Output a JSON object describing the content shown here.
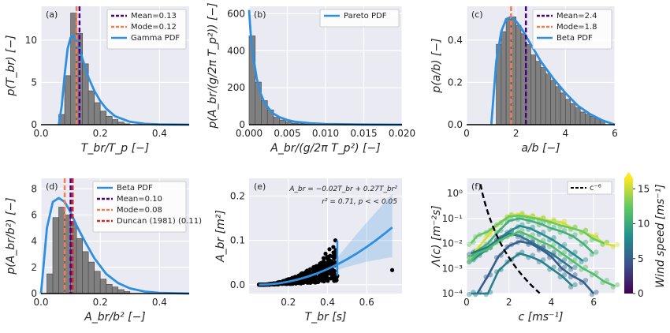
{
  "chart_data": [
    {
      "id": "a",
      "type": "bar",
      "panel_label": "(a)",
      "xlabel": "T_br/T_p [−]",
      "ylabel": "p(T_br) [−]",
      "xlim": [
        0,
        0.5
      ],
      "ylim": [
        0,
        14
      ],
      "xticks": [
        "0.0",
        "0.2",
        "0.4"
      ],
      "yticks": [
        "0",
        "5",
        "10"
      ],
      "xtick_vals": [
        0,
        0.2,
        0.4
      ],
      "ytick_vals": [
        0,
        5,
        10
      ],
      "bin_edges": [
        0.06,
        0.08,
        0.1,
        0.12,
        0.14,
        0.16,
        0.18,
        0.2,
        0.22,
        0.24,
        0.26,
        0.28,
        0.3
      ],
      "hist": [
        1.2,
        5.8,
        13.2,
        10.8,
        7.2,
        4.0,
        2.6,
        1.6,
        1.0,
        0.6,
        0.3,
        0.1
      ],
      "pdf_name": "Gamma PDF",
      "pdf_x": [
        0.06,
        0.07,
        0.08,
        0.09,
        0.1,
        0.11,
        0.12,
        0.13,
        0.14,
        0.16,
        0.18,
        0.2,
        0.22,
        0.25,
        0.3,
        0.35,
        0.4,
        0.5
      ],
      "pdf_y": [
        0,
        2.2,
        6.0,
        9.0,
        10.3,
        10.5,
        10.0,
        9.0,
        7.8,
        5.6,
        4.0,
        2.8,
        1.9,
        1.0,
        0.35,
        0.1,
        0.03,
        0
      ],
      "vlines": [
        {
          "name": "Mean=0.13",
          "x": 0.13,
          "color": "#4b0082",
          "style": "dash"
        },
        {
          "name": "Mode=0.12",
          "x": 0.12,
          "color": "#f47c4e",
          "style": "dash"
        }
      ],
      "legend": [
        "Mean=0.13",
        "Mode=0.12",
        "Gamma PDF"
      ]
    },
    {
      "id": "b",
      "type": "bar",
      "panel_label": "(b)",
      "xlabel": "A_br/(g/2π T_p²) [−]",
      "ylabel": "p(A_br/(g/2π T_p²)) [−]",
      "xlim": [
        0,
        0.02
      ],
      "ylim": [
        0,
        640
      ],
      "xticks": [
        "0.000",
        "0.005",
        "0.010",
        "0.015",
        "0.020"
      ],
      "yticks": [
        "0",
        "200",
        "400",
        "600"
      ],
      "xtick_vals": [
        0,
        0.005,
        0.01,
        0.015,
        0.02
      ],
      "ytick_vals": [
        0,
        200,
        400,
        600
      ],
      "bin_edges": [
        0,
        0.0008,
        0.0016,
        0.0024,
        0.0032,
        0.004,
        0.0048,
        0.0056,
        0.0064,
        0.0072,
        0.008,
        0.0088
      ],
      "hist": [
        480,
        230,
        130,
        80,
        40,
        25,
        15,
        8,
        5,
        3,
        2
      ],
      "pdf_name": "Pareto PDF",
      "pdf_x": [
        0,
        0.0002,
        0.0005,
        0.001,
        0.0015,
        0.002,
        0.003,
        0.004,
        0.005,
        0.006,
        0.008,
        0.01,
        0.015,
        0.02
      ],
      "pdf_y": [
        620,
        500,
        380,
        250,
        170,
        120,
        65,
        40,
        25,
        16,
        8,
        4,
        1,
        0
      ],
      "vlines": [],
      "legend": [
        "Pareto PDF"
      ]
    },
    {
      "id": "c",
      "type": "bar",
      "panel_label": "(c)",
      "xlabel": "a/b [−]",
      "ylabel": "p(a/b) [−]",
      "xlim": [
        0,
        6
      ],
      "ylim": [
        0,
        0.56
      ],
      "xticks": [
        "0",
        "2",
        "4",
        "6"
      ],
      "yticks": [
        "0.0",
        "0.2",
        "0.4"
      ],
      "xtick_vals": [
        0,
        2,
        4,
        6
      ],
      "ytick_vals": [
        0,
        0.2,
        0.4
      ],
      "bin_edges": [
        1.2,
        1.4,
        1.6,
        1.8,
        2.0,
        2.2,
        2.4,
        2.6,
        2.8,
        3.0,
        3.2,
        3.4,
        3.6,
        3.8,
        4.0,
        4.2,
        4.4,
        4.6,
        4.8,
        5.0,
        5.2,
        5.4,
        5.6
      ],
      "hist": [
        0.38,
        0.44,
        0.5,
        0.51,
        0.47,
        0.43,
        0.38,
        0.33,
        0.3,
        0.27,
        0.24,
        0.21,
        0.18,
        0.15,
        0.12,
        0.1,
        0.08,
        0.06,
        0.05,
        0.04,
        0.03,
        0.02
      ],
      "pdf_name": "Beta PDF",
      "pdf_x": [
        1.0,
        1.2,
        1.4,
        1.6,
        1.8,
        2.0,
        2.2,
        2.5,
        3.0,
        3.5,
        4.0,
        4.5,
        5.0,
        5.5,
        6.0
      ],
      "pdf_y": [
        0,
        0.3,
        0.44,
        0.5,
        0.51,
        0.49,
        0.46,
        0.4,
        0.3,
        0.22,
        0.15,
        0.09,
        0.05,
        0.02,
        0.0
      ],
      "vlines": [
        {
          "name": "Mean=2.4",
          "x": 2.4,
          "color": "#4b0082",
          "style": "dash"
        },
        {
          "name": "Mode=1.8",
          "x": 1.8,
          "color": "#f47c4e",
          "style": "dash"
        }
      ],
      "legend": [
        "Mean=2.4",
        "Mode=1.8",
        "Beta PDF"
      ]
    },
    {
      "id": "d",
      "type": "bar",
      "panel_label": "(d)",
      "xlabel": "A_br/b² [−]",
      "ylabel": "p(A_br/b²) [−]",
      "xlim": [
        0,
        0.5
      ],
      "ylim": [
        0,
        8.8
      ],
      "xticks": [
        "0.0",
        "0.2",
        "0.4"
      ],
      "yticks": [
        "0",
        "2",
        "4",
        "6",
        "8"
      ],
      "xtick_vals": [
        0,
        0.2,
        0.4
      ],
      "ytick_vals": [
        0,
        2,
        4,
        6,
        8
      ],
      "bin_edges": [
        0.02,
        0.04,
        0.06,
        0.08,
        0.1,
        0.12,
        0.14,
        0.16,
        0.18,
        0.2,
        0.22,
        0.24,
        0.26,
        0.28,
        0.3
      ],
      "hist": [
        1.5,
        5.8,
        6.6,
        6.0,
        5.4,
        4.2,
        3.2,
        2.4,
        1.7,
        1.1,
        0.7,
        0.5,
        0.3,
        0.15
      ],
      "pdf_name": "Beta PDF",
      "pdf_x": [
        0.0,
        0.01,
        0.02,
        0.04,
        0.06,
        0.08,
        0.1,
        0.12,
        0.15,
        0.18,
        0.22,
        0.26,
        0.3,
        0.35,
        0.4,
        0.5
      ],
      "pdf_y": [
        0,
        2.5,
        5.0,
        7.0,
        7.3,
        7.0,
        6.2,
        5.2,
        3.9,
        2.7,
        1.5,
        0.8,
        0.4,
        0.15,
        0.05,
        0
      ],
      "vlines": [
        {
          "name": "Mean=0.10",
          "x": 0.1,
          "color": "#4b0082",
          "style": "dash"
        },
        {
          "name": "Mode=0.08",
          "x": 0.08,
          "color": "#f47c4e",
          "style": "dash"
        },
        {
          "name": "Duncan (1981) (0.11)",
          "x": 0.107,
          "color": "#d62728",
          "style": "dash"
        }
      ],
      "legend": [
        "Beta PDF",
        "Mean=0.10",
        "Mode=0.08",
        "Duncan (1981) (0.11)"
      ]
    },
    {
      "id": "e",
      "type": "scatter",
      "panel_label": "(e)",
      "xlabel": "T_br [s]",
      "ylabel": "A_br [m²]",
      "xlim": [
        0,
        0.78
      ],
      "ylim": [
        -0.02,
        0.24
      ],
      "xticks": [
        "0.2",
        "0.4",
        "0.6"
      ],
      "yticks": [
        "0.0",
        "0.1",
        "0.2"
      ],
      "xtick_vals": [
        0.2,
        0.4,
        0.6
      ],
      "ytick_vals": [
        0,
        0.1,
        0.2
      ],
      "annotation_1": "A_br = −0.02T_br + 0.27T_br²",
      "annotation_2": "r² = 0.71, p < < 0.05",
      "fit_x": [
        0.05,
        0.1,
        0.15,
        0.2,
        0.25,
        0.3,
        0.35,
        0.4,
        0.45,
        0.5,
        0.55,
        0.6,
        0.65,
        0.7,
        0.73
      ],
      "fit_y": [
        0,
        0.0007,
        0.003,
        0.0068,
        0.0119,
        0.0183,
        0.026,
        0.0352,
        0.0457,
        0.0575,
        0.0707,
        0.0852,
        0.1011,
        0.1183,
        0.1293
      ],
      "band_upper": [
        0.002,
        0.004,
        0.007,
        0.011,
        0.016,
        0.023,
        0.032,
        0.043,
        0.061,
        0.088,
        0.115,
        0.14,
        0.165,
        0.19,
        0.205
      ],
      "band_lower": [
        0,
        0,
        0.001,
        0.003,
        0.007,
        0.013,
        0.019,
        0.026,
        0.033,
        0.04,
        0.046,
        0.052,
        0.056,
        0.06,
        0.062
      ],
      "outliers": [
        [
          0.39,
          0.07
        ],
        [
          0.41,
          0.08
        ],
        [
          0.44,
          0.1
        ],
        [
          0.43,
          0.085
        ],
        [
          0.73,
          0.033
        ],
        [
          0.38,
          0.06
        ],
        [
          0.42,
          0.03
        ],
        [
          0.45,
          0.02
        ]
      ],
      "fit_color": "#2e8fe0",
      "point_color": "#000000"
    },
    {
      "id": "f",
      "type": "line",
      "panel_label": "(f)",
      "xlabel": "c [ms⁻¹]",
      "ylabel": "Λ(c) [m⁻²s]",
      "xlim": [
        0,
        7
      ],
      "ylim_log10": [
        -4,
        0.6
      ],
      "xticks": [
        "0",
        "2",
        "4",
        "6"
      ],
      "yticks": [
        "10⁻⁴",
        "10⁻³",
        "10⁻²",
        "10⁻¹",
        "10⁰"
      ],
      "xtick_vals": [
        0,
        2,
        4,
        6
      ],
      "ytick_exp": [
        -4,
        -3,
        -2,
        -1,
        0
      ],
      "reference_line": "c⁻⁶",
      "colorbar_label": "Wind speed [ms⁻¹]",
      "colorbar_ticks": [
        "0",
        "5",
        "10",
        "15"
      ],
      "colorbar_range": [
        0,
        16.5
      ],
      "colormap": [
        "#440154",
        "#3b528b",
        "#21918c",
        "#5ec962",
        "#fde725"
      ],
      "series": [
        {
          "wind": 15.5,
          "c": [
            0.2,
            0.5,
            1.0,
            1.5,
            2.0,
            2.5,
            3.0,
            3.5,
            4.0,
            4.5,
            5.0,
            5.5,
            6.0,
            6.5,
            7.0
          ],
          "y": [
            0.003,
            0.006,
            0.02,
            0.06,
            0.13,
            0.15,
            0.12,
            0.1,
            0.08,
            0.07,
            0.04,
            0.03,
            0.02,
            0.01,
            0.008
          ]
        },
        {
          "wind": 12.5,
          "c": [
            0.2,
            0.5,
            1.0,
            1.5,
            2.0,
            2.5,
            3.0,
            3.5,
            4.0,
            4.5,
            5.0,
            5.5,
            6.0,
            6.5
          ],
          "y": [
            0.01,
            0.02,
            0.03,
            0.06,
            0.12,
            0.13,
            0.11,
            0.09,
            0.07,
            0.05,
            0.04,
            0.03,
            0.015,
            0.01
          ]
        },
        {
          "wind": 10.5,
          "c": [
            0.2,
            0.5,
            1.0,
            1.5,
            2.0,
            2.5,
            3.0,
            3.5,
            4.0,
            4.5,
            5.0,
            5.5,
            6.0
          ],
          "y": [
            0.003,
            0.005,
            0.01,
            0.03,
            0.08,
            0.1,
            0.08,
            0.06,
            0.04,
            0.03,
            0.02,
            0.01,
            0.004
          ]
        },
        {
          "wind": 8.0,
          "c": [
            0.2,
            0.5,
            1.0,
            1.5,
            2.0,
            2.5,
            3.0,
            3.5,
            4.0,
            4.5,
            5.0,
            5.5
          ],
          "y": [
            0.002,
            0.003,
            0.006,
            0.015,
            0.03,
            0.05,
            0.04,
            0.025,
            0.015,
            0.008,
            0.004,
            0.002
          ]
        },
        {
          "wind": 6.5,
          "c": [
            0.2,
            0.5,
            1.0,
            1.5,
            2.0,
            2.5,
            3.0,
            3.5,
            4.0,
            4.5,
            5.0
          ],
          "y": [
            0.004,
            0.005,
            0.007,
            0.015,
            0.025,
            0.02,
            0.012,
            0.007,
            0.004,
            0.002,
            0.001
          ]
        },
        {
          "wind": 5.0,
          "c": [
            0.5,
            1.0,
            1.5,
            2.0,
            2.5,
            3.0,
            3.5,
            4.0,
            4.5,
            5.0,
            5.5,
            6.0
          ],
          "y": [
            0.0001,
            0.0005,
            0.003,
            0.008,
            0.012,
            0.01,
            0.006,
            0.003,
            0.001,
            0.0005,
            0.0003,
            0.0001
          ]
        },
        {
          "wind": 7.2,
          "c": [
            0.2,
            1.0,
            1.5,
            2.0,
            2.5,
            3.0,
            3.5,
            4.0,
            4.5,
            5.0
          ],
          "y": [
            0.0001,
            0.0001,
            0.0008,
            0.002,
            0.004,
            0.003,
            0.002,
            0.001,
            0.0005,
            0.0002
          ]
        },
        {
          "wind": 11.5,
          "c": [
            0.2,
            0.5,
            1.0,
            1.5,
            2.0,
            2.5,
            3.0,
            3.5,
            4.0,
            4.5,
            5.0,
            5.5,
            6.0,
            6.5,
            7.0
          ],
          "y": [
            0.002,
            0.004,
            0.006,
            0.012,
            0.02,
            0.03,
            0.02,
            0.012,
            0.008,
            0.004,
            0.002,
            0.001,
            0.0006,
            0.0003,
            0.0002
          ]
        }
      ]
    }
  ]
}
